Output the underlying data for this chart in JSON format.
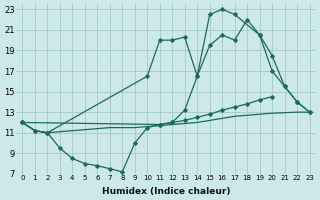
{
  "xlabel": "Humidex (Indice chaleur)",
  "bg_color": "#cce8e8",
  "grid_color": "#aacccc",
  "line_color": "#1a6b5a",
  "xlim": [
    -0.5,
    23.5
  ],
  "ylim": [
    7,
    23.5
  ],
  "xticks": [
    0,
    1,
    2,
    3,
    4,
    5,
    6,
    7,
    8,
    9,
    10,
    11,
    12,
    13,
    14,
    15,
    16,
    17,
    18,
    19,
    20,
    21,
    22,
    23
  ],
  "yticks": [
    7,
    9,
    11,
    13,
    15,
    17,
    19,
    21,
    23
  ],
  "line1_x": [
    0,
    1,
    2,
    3,
    4,
    5,
    6,
    7,
    8,
    9,
    10,
    11,
    12,
    13,
    14,
    15,
    16,
    17,
    18,
    19,
    20,
    21,
    22,
    23
  ],
  "line1_y": [
    12,
    11.2,
    11.0,
    11.1,
    11.2,
    11.3,
    11.4,
    11.5,
    11.5,
    11.5,
    11.6,
    11.7,
    11.8,
    11.9,
    12.0,
    12.2,
    12.4,
    12.6,
    12.7,
    12.8,
    12.9,
    12.95,
    13.0,
    13.0
  ],
  "line2_x": [
    0,
    1,
    2,
    3,
    4,
    5,
    6,
    7,
    8,
    9,
    10,
    11,
    12,
    13,
    14,
    15,
    16,
    17,
    18,
    19,
    20
  ],
  "line2_y": [
    12,
    11.2,
    11.0,
    9.5,
    8.5,
    8.0,
    7.8,
    7.5,
    7.2,
    10.0,
    11.5,
    11.8,
    12.0,
    12.2,
    12.5,
    12.8,
    13.2,
    13.5,
    13.8,
    14.2,
    14.5
  ],
  "line3_x": [
    0,
    1,
    2,
    10,
    11,
    12,
    13,
    14,
    15,
    16,
    17,
    18,
    19,
    20,
    21,
    22,
    23
  ],
  "line3_y": [
    12,
    11.2,
    11.0,
    16.5,
    20.0,
    20.0,
    20.3,
    16.5,
    19.5,
    20.5,
    20.0,
    22.0,
    20.5,
    17.0,
    15.5,
    14.0,
    13.0
  ],
  "line4_x": [
    0,
    11,
    12,
    13,
    14,
    15,
    16,
    17,
    19,
    20,
    21,
    22,
    23
  ],
  "line4_y": [
    12,
    11.8,
    12.0,
    13.2,
    16.5,
    22.5,
    23.0,
    22.5,
    20.5,
    18.5,
    15.5,
    14.0,
    13.0
  ]
}
